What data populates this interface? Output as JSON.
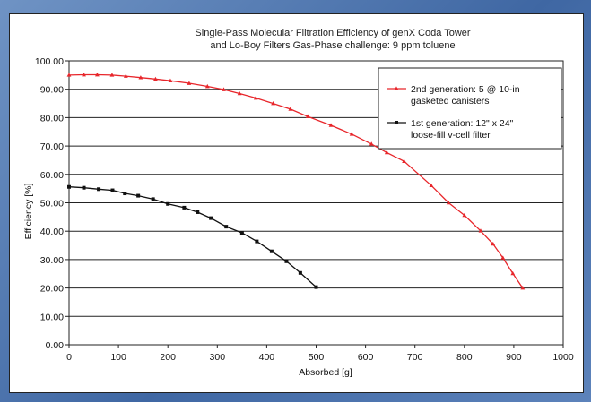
{
  "chart_data": {
    "type": "line",
    "title": "Single-Pass Molecular Filtration Efficiency of genX Coda Tower and Lo-Boy Filters Gas-Phase challenge: 9 ppm toluene",
    "title_lines": [
      "Single-Pass Molecular Filtration Efficiency of genX Coda Tower",
      "and Lo-Boy Filters Gas-Phase challenge: 9 ppm toluene"
    ],
    "xlabel": "Absorbed [g]",
    "ylabel": "Efficiency [%]",
    "xlim": [
      0,
      1000
    ],
    "ylim": [
      0,
      100
    ],
    "x_ticks": [
      "0",
      "100",
      "200",
      "300",
      "400",
      "500",
      "600",
      "700",
      "800",
      "900",
      "1000"
    ],
    "y_ticks": [
      "0.00",
      "10.00",
      "20.00",
      "30.00",
      "40.00",
      "50.00",
      "60.00",
      "70.00",
      "80.00",
      "90.00",
      "100.00"
    ],
    "grid": "horizontal",
    "legend_position": "top-right",
    "series": [
      {
        "name": "2nd generation: 5 @ 10-in gasketed canisters",
        "legend_lines": [
          "2nd generation: 5 @ 10-in",
          "gasketed canisters"
        ],
        "color": "#e8262b",
        "marker": "triangle",
        "x": [
          0,
          30,
          57,
          87,
          115,
          145,
          175,
          205,
          243,
          280,
          313,
          345,
          378,
          413,
          448,
          483,
          530,
          572,
          612,
          643,
          678,
          733,
          768,
          800,
          833,
          858,
          878,
          898,
          918
        ],
        "y": [
          95.0,
          95.1,
          95.1,
          95.0,
          94.6,
          94.1,
          93.6,
          93.0,
          92.1,
          91.0,
          89.9,
          88.5,
          86.9,
          85.0,
          83.0,
          80.4,
          77.3,
          74.2,
          70.7,
          67.7,
          64.6,
          56.1,
          50.0,
          45.6,
          40.1,
          35.5,
          30.6,
          25.1,
          20.0
        ]
      },
      {
        "name": "1st generation: 12\" x 24\" loose-fill v-cell filter",
        "legend_lines": [
          "1st generation: 12\" x 24\"",
          "loose-fill v-cell filter"
        ],
        "color": "#111111",
        "marker": "square",
        "x": [
          0,
          30,
          60,
          88,
          113,
          140,
          170,
          200,
          233,
          260,
          287,
          318,
          350,
          380,
          410,
          440,
          468,
          500
        ],
        "y": [
          55.6,
          55.3,
          54.8,
          54.4,
          53.3,
          52.5,
          51.3,
          49.6,
          48.3,
          46.7,
          44.6,
          41.6,
          39.4,
          36.4,
          32.9,
          29.4,
          25.3,
          20.3
        ]
      }
    ]
  }
}
